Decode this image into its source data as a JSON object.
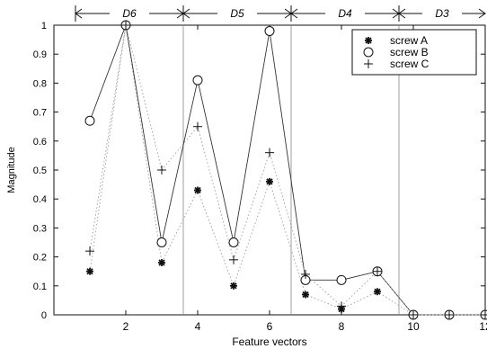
{
  "chart_data": {
    "type": "line",
    "xlabel": "Feature vectors",
    "ylabel": "Magnitude",
    "xlim": [
      0,
      12
    ],
    "ylim": [
      0,
      1
    ],
    "xticks": [
      2,
      4,
      6,
      8,
      10,
      12
    ],
    "yticks": [
      0,
      0.1,
      0.2,
      0.3,
      0.4,
      0.5,
      0.6,
      0.7,
      0.8,
      0.9,
      1
    ],
    "grid": false,
    "legend_position": "top-right",
    "x": [
      1,
      2,
      3,
      4,
      5,
      6,
      7,
      8,
      9,
      10,
      11,
      12
    ],
    "series": [
      {
        "name": "screw A",
        "marker": "asterisk",
        "values": [
          0.15,
          1.0,
          0.18,
          0.43,
          0.1,
          0.46,
          0.07,
          0.02,
          0.08,
          0.0,
          0.0,
          0.0
        ]
      },
      {
        "name": "screw B",
        "marker": "circle",
        "values": [
          0.67,
          1.0,
          0.25,
          0.81,
          0.25,
          0.98,
          0.12,
          0.12,
          0.15,
          0.0,
          0.0,
          0.0
        ]
      },
      {
        "name": "screw C",
        "marker": "plus",
        "values": [
          0.22,
          1.0,
          0.5,
          0.65,
          0.19,
          0.56,
          0.14,
          0.03,
          0.15,
          0.0,
          0.0,
          0.0
        ]
      }
    ],
    "separators_x": [
      3.6,
      6.6,
      9.6
    ],
    "bands": [
      {
        "label": "D6",
        "from": 0.6,
        "to": 3.6
      },
      {
        "label": "D5",
        "from": 3.6,
        "to": 6.6
      },
      {
        "label": "D4",
        "from": 6.6,
        "to": 9.6
      },
      {
        "label": "D3",
        "from": 9.6,
        "to": 12
      }
    ]
  }
}
